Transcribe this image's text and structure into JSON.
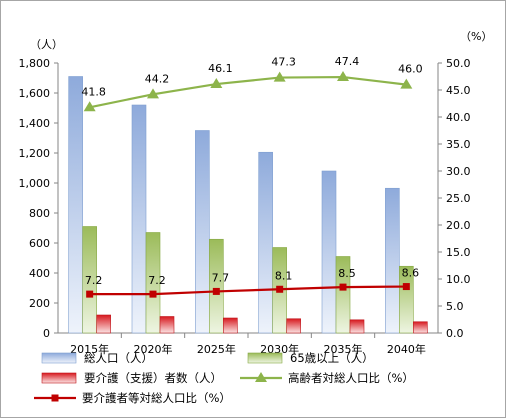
{
  "chart_data": {
    "type": "bar",
    "categories": [
      "2015年",
      "2020年",
      "2025年",
      "2030年",
      "2035年",
      "2040年"
    ],
    "series": [
      {
        "name": "総人口（人）",
        "kind": "bar",
        "axis": "left",
        "values": [
          1710,
          1520,
          1350,
          1205,
          1080,
          965
        ],
        "color": "#95b3d7"
      },
      {
        "name": "65歳以上（人）",
        "kind": "bar",
        "axis": "left",
        "values": [
          710,
          670,
          625,
          570,
          510,
          445
        ],
        "color": "#9bbb59"
      },
      {
        "name": "要介護（支援）者数（人）",
        "kind": "bar",
        "axis": "left",
        "values": [
          120,
          110,
          100,
          95,
          88,
          75
        ],
        "color": "#e0202a"
      },
      {
        "name": "高齢者対総人口比（%）",
        "kind": "line",
        "axis": "right",
        "values": [
          41.8,
          44.2,
          46.1,
          47.3,
          47.4,
          46.0
        ],
        "labels": [
          "41.8",
          "44.2",
          "46.1",
          "47.3",
          "47.4",
          "46.0"
        ],
        "color": "#8db44b",
        "marker": "triangle"
      },
      {
        "name": "要介護者等対総人口比（%）",
        "kind": "line",
        "axis": "right",
        "values": [
          7.2,
          7.2,
          7.7,
          8.1,
          8.5,
          8.6
        ],
        "labels": [
          "7.2",
          "7.2",
          "7.7",
          "8.1",
          "8.5",
          "8.6"
        ],
        "color": "#c00000",
        "marker": "square"
      }
    ],
    "y_left": {
      "unit": "（人）",
      "min": 0,
      "max": 1800,
      "step": 200,
      "ticks": [
        "0",
        "200",
        "400",
        "600",
        "800",
        "1,000",
        "1,200",
        "1,400",
        "1,600",
        "1,800"
      ]
    },
    "y_right": {
      "unit": "（%）",
      "min": 0,
      "max": 50,
      "step": 5,
      "ticks": [
        "0.0",
        "5.0",
        "10.0",
        "15.0",
        "20.0",
        "25.0",
        "30.0",
        "35.0",
        "40.0",
        "45.0",
        "50.0"
      ]
    },
    "grid": false,
    "legend_position": "bottom"
  }
}
